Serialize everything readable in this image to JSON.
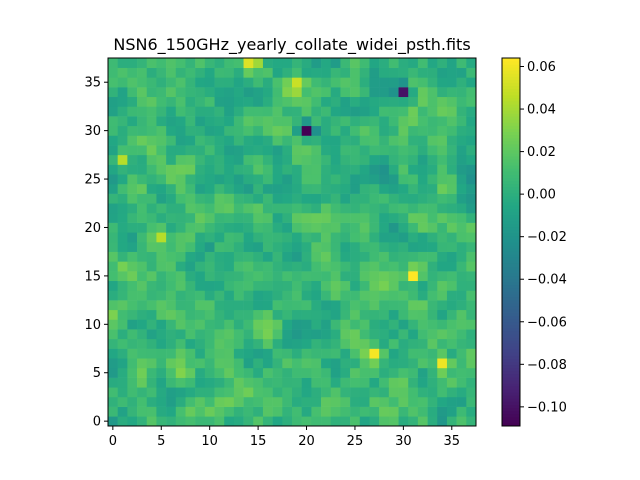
{
  "chart_data": {
    "type": "heatmap",
    "title": "NSN6_150GHz_yearly_collate_widei_psth.fits",
    "xlabel": "",
    "ylabel": "",
    "grid": false,
    "colormap": "viridis",
    "origin": "lower",
    "shape": [
      38,
      38
    ],
    "xlim": [
      -0.5,
      37.5
    ],
    "ylim": [
      -0.5,
      37.5
    ],
    "x_ticks": [
      0,
      5,
      10,
      15,
      20,
      25,
      30,
      35
    ],
    "y_ticks": [
      0,
      5,
      10,
      15,
      20,
      25,
      30,
      35
    ],
    "x_tick_labels": [
      "0",
      "5",
      "10",
      "15",
      "20",
      "25",
      "30",
      "35"
    ],
    "y_tick_labels": [
      "0",
      "5",
      "10",
      "15",
      "20",
      "25",
      "30",
      "35"
    ],
    "colorbar": {
      "vmin": -0.109,
      "vmax": 0.064,
      "ticks": [
        -0.1,
        -0.08,
        -0.06,
        -0.04,
        -0.02,
        0.0,
        0.02,
        0.04,
        0.06
      ],
      "tick_labels": [
        "−0.10",
        "−0.08",
        "−0.06",
        "−0.04",
        "−0.02",
        "0.00",
        "0.02",
        "0.04",
        "0.06"
      ]
    },
    "values_note": "",
    "features": [
      {
        "x": 20,
        "y": 30,
        "value": -0.109
      },
      {
        "x": 30,
        "y": 34,
        "value": -0.1
      },
      {
        "x": 31,
        "y": 15,
        "value": 0.064
      },
      {
        "x": 27,
        "y": 7,
        "value": 0.062
      },
      {
        "x": 34,
        "y": 6,
        "value": 0.06
      },
      {
        "x": 14,
        "y": 37,
        "value": 0.055
      },
      {
        "x": 19,
        "y": 35,
        "value": 0.05
      },
      {
        "x": 1,
        "y": 27,
        "value": 0.045
      },
      {
        "x": 5,
        "y": 19,
        "value": 0.045
      }
    ]
  }
}
